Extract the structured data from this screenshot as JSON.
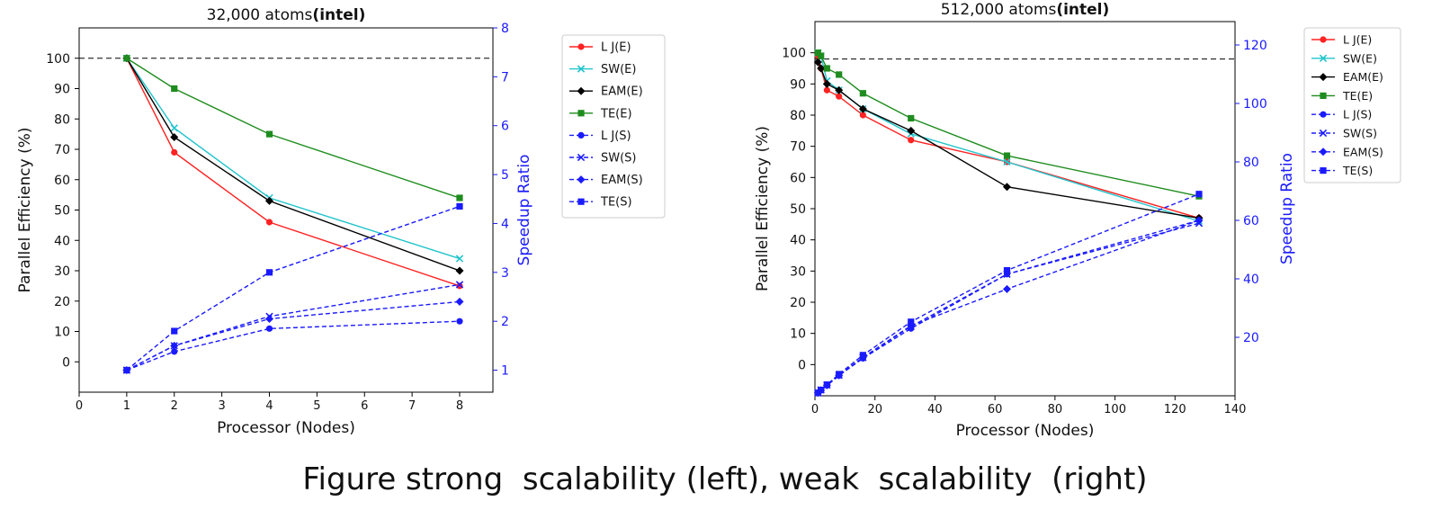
{
  "caption": "Figure strong  scalability (left), weak  scalability  (right)",
  "chart_data": [
    {
      "type": "line",
      "title_prefix": "32,000 atoms",
      "title_suffix": "(intel)",
      "xlabel": "Processor (Nodes)",
      "ylabel": "Parallel Efficiency (%)",
      "y2label": "Speedup Ratio",
      "xlim": [
        0,
        8.7
      ],
      "ylim": [
        -10,
        110
      ],
      "y2lim": [
        0.55,
        8
      ],
      "xticks": [
        0,
        1,
        2,
        3,
        4,
        5,
        6,
        7,
        8
      ],
      "yticks": [
        0,
        10,
        20,
        30,
        40,
        50,
        60,
        70,
        80,
        90,
        100
      ],
      "y2ticks": [
        1,
        2,
        3,
        4,
        5,
        6,
        7,
        8
      ],
      "reference_line_y": 100,
      "legend_position": "outside-right",
      "x": [
        1,
        2,
        4,
        8
      ],
      "series": [
        {
          "name": "L J(E)",
          "axis": "left",
          "color": "#ff2222",
          "marker": "circle",
          "dashed": false,
          "values": [
            100,
            69,
            46,
            25
          ]
        },
        {
          "name": "SW(E)",
          "axis": "left",
          "color": "#22c4cc",
          "marker": "x",
          "dashed": false,
          "values": [
            100,
            77,
            54,
            34
          ]
        },
        {
          "name": "EAM(E)",
          "axis": "left",
          "color": "#000000",
          "marker": "diamond",
          "dashed": false,
          "values": [
            100,
            74,
            53,
            30
          ]
        },
        {
          "name": "TE(E)",
          "axis": "left",
          "color": "#1e8c1e",
          "marker": "square",
          "dashed": false,
          "values": [
            100,
            90,
            75,
            54
          ]
        },
        {
          "name": "L J(S)",
          "axis": "right",
          "color": "#1a1aff",
          "marker": "circle",
          "dashed": true,
          "values": [
            1,
            1.38,
            1.85,
            2.0
          ]
        },
        {
          "name": "SW(S)",
          "axis": "right",
          "color": "#1a1aff",
          "marker": "x",
          "dashed": true,
          "values": [
            1,
            1.5,
            2.1,
            2.75
          ]
        },
        {
          "name": "EAM(S)",
          "axis": "right",
          "color": "#1a1aff",
          "marker": "diamond",
          "dashed": true,
          "values": [
            1,
            1.5,
            2.05,
            2.4
          ]
        },
        {
          "name": "TE(S)",
          "axis": "right",
          "color": "#1a1aff",
          "marker": "square",
          "dashed": true,
          "values": [
            1,
            1.8,
            3.0,
            4.35
          ]
        }
      ]
    },
    {
      "type": "line",
      "title_prefix": "512,000 atoms",
      "title_suffix": "(intel)",
      "xlabel": "Processor (Nodes)",
      "ylabel": "Parallel Efficiency (%)",
      "y2label": "Speedup Ratio",
      "xlim": [
        0,
        140
      ],
      "ylim": [
        -10,
        110
      ],
      "y2lim": [
        0,
        128
      ],
      "xticks": [
        0,
        20,
        40,
        60,
        80,
        100,
        120,
        140
      ],
      "yticks": [
        0,
        10,
        20,
        30,
        40,
        50,
        60,
        70,
        80,
        90,
        100
      ],
      "y2ticks": [
        20,
        40,
        60,
        80,
        100,
        120
      ],
      "reference_line_y": 98,
      "legend_position": "outside-right",
      "x": [
        1,
        2,
        4,
        8,
        16,
        32,
        64,
        128
      ],
      "series": [
        {
          "name": "L J(E)",
          "axis": "left",
          "color": "#ff2222",
          "marker": "circle",
          "dashed": false,
          "values": [
            99,
            95,
            88,
            86,
            80,
            72,
            65,
            47
          ]
        },
        {
          "name": "SW(E)",
          "axis": "left",
          "color": "#22c4cc",
          "marker": "x",
          "dashed": false,
          "values": [
            100,
            99,
            91,
            88,
            82,
            74,
            65,
            46
          ]
        },
        {
          "name": "EAM(E)",
          "axis": "left",
          "color": "#000000",
          "marker": "diamond",
          "dashed": false,
          "values": [
            97,
            95,
            90,
            88,
            82,
            75,
            57,
            47
          ]
        },
        {
          "name": "TE(E)",
          "axis": "left",
          "color": "#1e8c1e",
          "marker": "square",
          "dashed": false,
          "values": [
            100,
            99,
            95,
            93,
            87,
            79,
            67,
            54
          ]
        },
        {
          "name": "L J(S)",
          "axis": "right",
          "color": "#1a1aff",
          "marker": "circle",
          "dashed": true,
          "values": [
            1,
            1.9,
            3.5,
            6.9,
            12.8,
            23,
            41.6,
            60
          ]
        },
        {
          "name": "SW(S)",
          "axis": "right",
          "color": "#1a1aff",
          "marker": "x",
          "dashed": true,
          "values": [
            1,
            2,
            3.7,
            7,
            13.1,
            23.7,
            41.6,
            59
          ]
        },
        {
          "name": "EAM(S)",
          "axis": "right",
          "color": "#1a1aff",
          "marker": "diamond",
          "dashed": true,
          "values": [
            1,
            1.9,
            3.6,
            7,
            13.1,
            24,
            36.5,
            60
          ]
        },
        {
          "name": "TE(S)",
          "axis": "right",
          "color": "#1a1aff",
          "marker": "square",
          "dashed": true,
          "values": [
            1,
            2,
            3.8,
            7.4,
            13.9,
            25.3,
            42.9,
            69
          ]
        }
      ]
    }
  ]
}
